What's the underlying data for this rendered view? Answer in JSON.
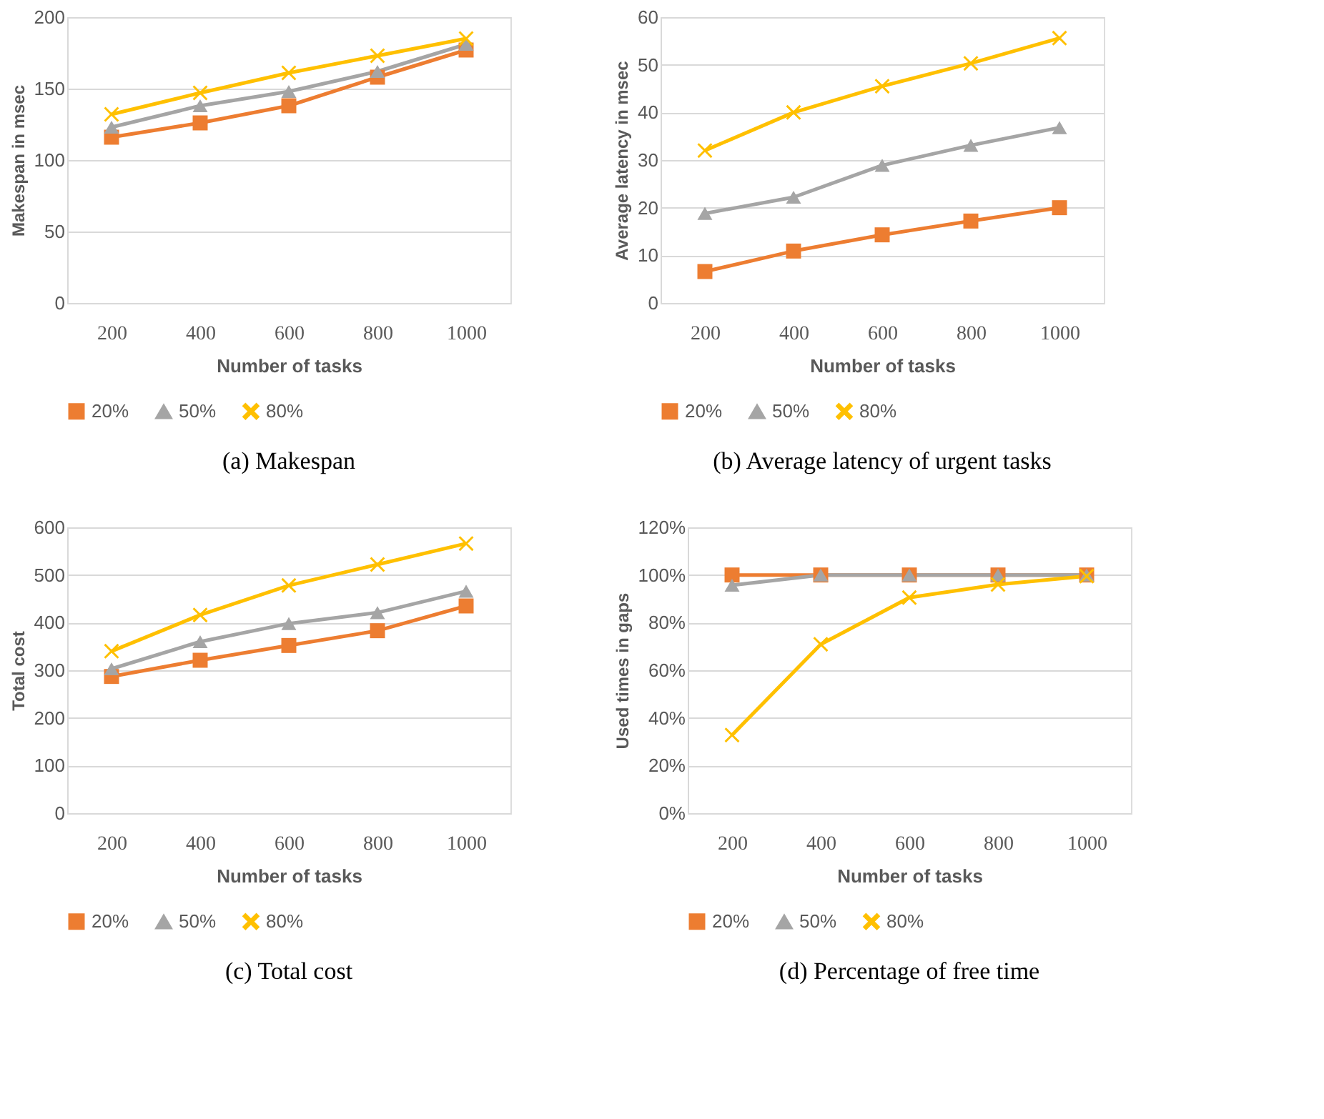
{
  "chart_data": [
    {
      "type": "line",
      "title": "(a) Makespan",
      "xlabel": "Number of tasks",
      "ylabel": "Makespan in msec",
      "categories": [
        "200",
        "400",
        "600",
        "800",
        "1000"
      ],
      "ylim": [
        0,
        200
      ],
      "yticks": [
        0,
        50,
        100,
        150,
        200
      ],
      "grid": "y",
      "legend": "bottom",
      "series": [
        {
          "name": "20%",
          "color": "#ed7d31",
          "marker": "square",
          "values": [
            116,
            126,
            138,
            158,
            177
          ]
        },
        {
          "name": "50%",
          "color": "#a5a5a5",
          "marker": "triangle",
          "values": [
            123,
            138,
            148,
            162,
            181
          ]
        },
        {
          "name": "80%",
          "color": "#ffc000",
          "marker": "cross",
          "values": [
            132,
            147,
            161,
            173,
            185
          ]
        }
      ]
    },
    {
      "type": "line",
      "title": "(b) Average latency of urgent tasks",
      "xlabel": "Number of tasks",
      "ylabel": "Average latency in msec",
      "categories": [
        "200",
        "400",
        "600",
        "800",
        "1000"
      ],
      "ylim": [
        0,
        60
      ],
      "yticks": [
        0,
        10,
        20,
        30,
        40,
        50,
        60
      ],
      "grid": "y",
      "legend": "bottom",
      "series": [
        {
          "name": "20%",
          "color": "#ed7d31",
          "marker": "square",
          "values": [
            6.6,
            10.9,
            14.3,
            17.2,
            20.0
          ]
        },
        {
          "name": "50%",
          "color": "#a5a5a5",
          "marker": "triangle",
          "values": [
            18.8,
            22.2,
            28.9,
            33.1,
            36.8
          ]
        },
        {
          "name": "80%",
          "color": "#ffc000",
          "marker": "cross",
          "values": [
            32.0,
            40.0,
            45.5,
            50.3,
            55.6
          ]
        }
      ]
    },
    {
      "type": "line",
      "title": "(c) Total cost",
      "xlabel": "Number of tasks",
      "ylabel": "Total cost",
      "categories": [
        "200",
        "400",
        "600",
        "800",
        "1000"
      ],
      "ylim": [
        0,
        600
      ],
      "yticks": [
        0,
        100,
        200,
        300,
        400,
        500,
        600
      ],
      "grid": "y",
      "legend": "bottom",
      "series": [
        {
          "name": "20%",
          "color": "#ed7d31",
          "marker": "square",
          "values": [
            287,
            321,
            352,
            383,
            435
          ]
        },
        {
          "name": "50%",
          "color": "#a5a5a5",
          "marker": "triangle",
          "values": [
            303,
            360,
            398,
            421,
            466
          ]
        },
        {
          "name": "80%",
          "color": "#ffc000",
          "marker": "cross",
          "values": [
            340,
            416,
            478,
            522,
            566
          ]
        }
      ]
    },
    {
      "type": "line",
      "title": "(d) Percentage of free time",
      "xlabel": "Number of tasks",
      "ylabel": "Used times in gaps",
      "categories": [
        "200",
        "400",
        "600",
        "800",
        "1000"
      ],
      "ylim": [
        0,
        120
      ],
      "yticks": [
        {
          "value": 0,
          "label": "0%"
        },
        {
          "value": 20,
          "label": "20%"
        },
        {
          "value": 40,
          "label": "40%"
        },
        {
          "value": 60,
          "label": "60%"
        },
        {
          "value": 80,
          "label": "80%"
        },
        {
          "value": 100,
          "label": "100%"
        },
        {
          "value": 120,
          "label": "120%"
        }
      ],
      "grid": "y",
      "legend": "bottom",
      "series": [
        {
          "name": "20%",
          "color": "#ed7d31",
          "marker": "square",
          "values": [
            100,
            100,
            100,
            100,
            100
          ]
        },
        {
          "name": "50%",
          "color": "#a5a5a5",
          "marker": "triangle",
          "values": [
            95.7,
            100,
            100,
            100,
            100
          ]
        },
        {
          "name": "80%",
          "color": "#ffc000",
          "marker": "cross",
          "values": [
            32.8,
            70.9,
            90.5,
            96,
            99.5
          ]
        }
      ]
    }
  ]
}
